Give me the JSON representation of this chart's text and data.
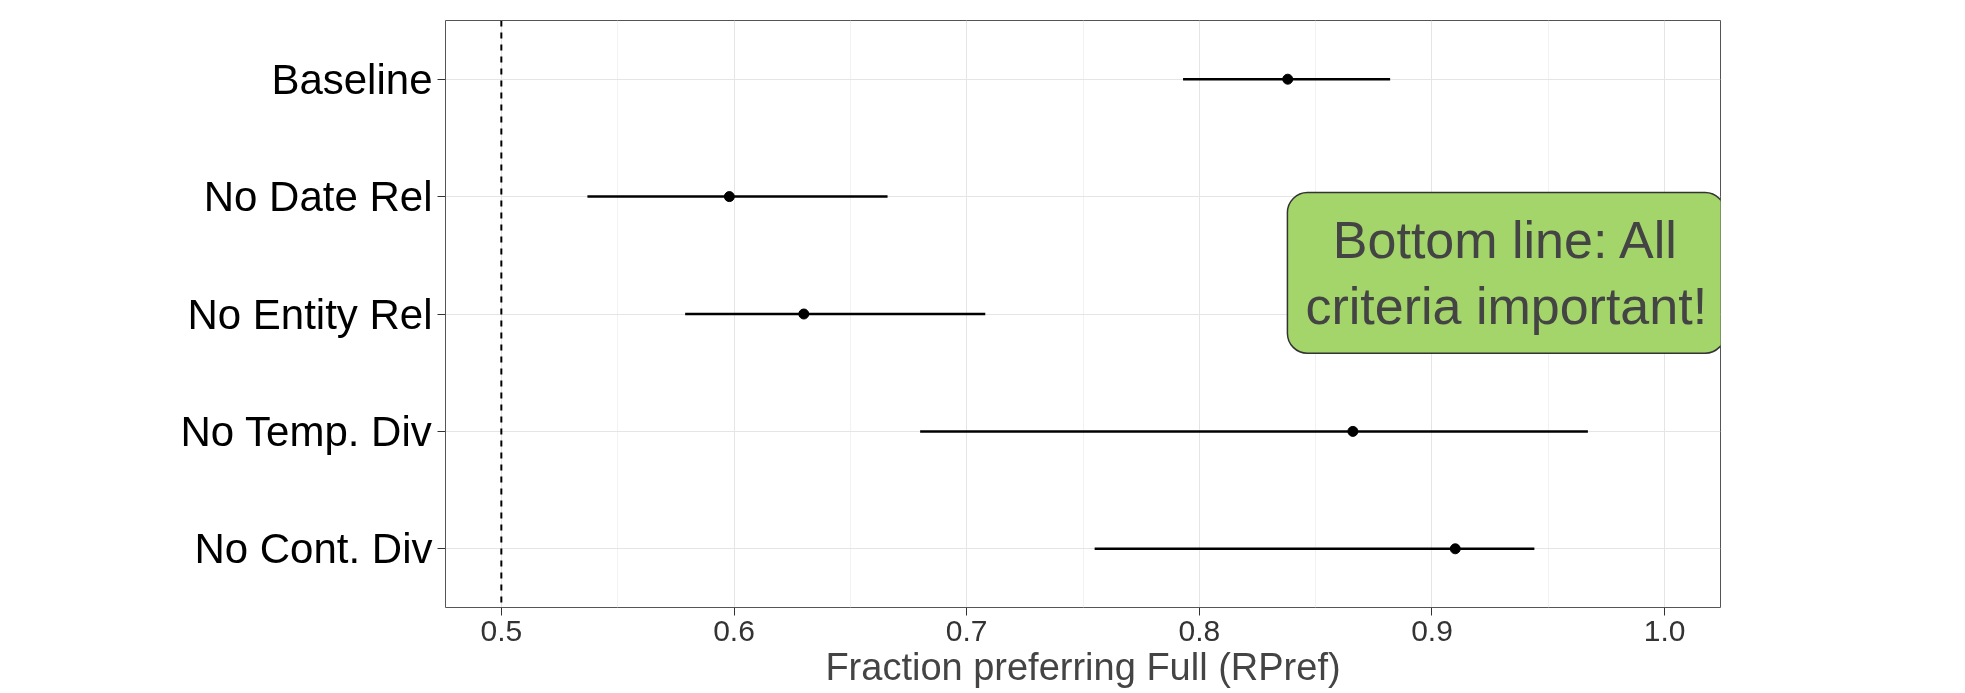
{
  "chart_data": {
    "type": "scatter",
    "orientation": "horizontal",
    "xlabel": "Fraction preferring Full (RPref)",
    "categories": [
      "Baseline",
      "No Date Rel",
      "No Entity Rel",
      "No Temp. Div",
      "No Cont. Div"
    ],
    "series": [
      {
        "color": "#000000",
        "values": [
          0.838,
          0.598,
          0.63,
          0.866,
          0.91
        ],
        "errors": [
          [
            0.793,
            0.882
          ],
          [
            0.537,
            0.666
          ],
          [
            0.579,
            0.708
          ],
          [
            0.68,
            0.967
          ],
          [
            0.755,
            0.944
          ]
        ]
      }
    ],
    "xlim": [
      0.476,
      1.024
    ],
    "xticks": [
      0.5,
      0.6,
      0.7,
      0.8,
      0.9,
      {
        "value": 1.0,
        "label": "1.0"
      }
    ],
    "ref_lines": [
      {
        "axis": "x",
        "value": 0.5,
        "line_style": "dashed",
        "color": "#000000"
      }
    ],
    "annotations": [
      "Bottom line: All criteria important!"
    ],
    "grid": true,
    "marker": "circle"
  }
}
